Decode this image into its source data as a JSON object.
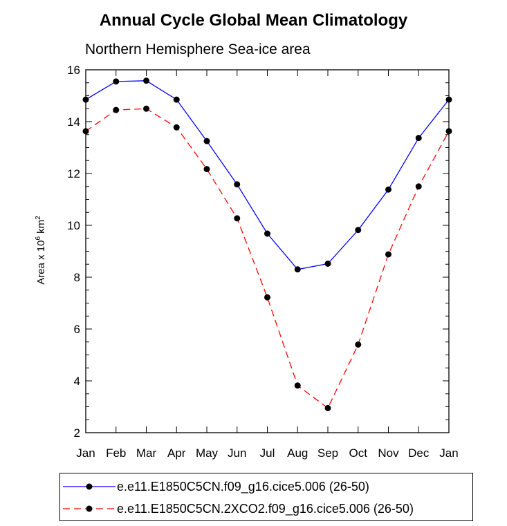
{
  "chart_data": {
    "type": "line",
    "title": "Annual Cycle Global Mean Climatology",
    "subtitle": "Northern Hemisphere Sea-ice area",
    "ylabel": "Area x 10",
    "ylabel_sup1": "6",
    "ylabel_unit": " km",
    "ylabel_sup2": "2",
    "xlabel": "",
    "categories": [
      "Jan",
      "Feb",
      "Mar",
      "Apr",
      "May",
      "Jun",
      "Jul",
      "Aug",
      "Sep",
      "Oct",
      "Nov",
      "Dec",
      "Jan"
    ],
    "ylim": [
      2,
      16
    ],
    "yticks": [
      2,
      4,
      6,
      8,
      10,
      12,
      14,
      16
    ],
    "series": [
      {
        "name": "e.e11.E1850C5CN.f09_g16.cice5.006 (26-50)",
        "color": "#0000ff",
        "dash": "solid",
        "values": [
          14.85,
          15.55,
          15.58,
          14.85,
          13.25,
          11.58,
          9.68,
          8.3,
          8.52,
          9.82,
          11.38,
          13.37,
          14.85
        ]
      },
      {
        "name": "e.e11.E1850C5CN.2XCO2.f09_g16.cice5.006 (26-50)",
        "color": "#ff0000",
        "dash": "dashed",
        "values": [
          13.63,
          14.45,
          14.5,
          13.78,
          12.17,
          10.27,
          7.22,
          3.82,
          2.95,
          5.4,
          8.88,
          11.5,
          13.63
        ]
      }
    ],
    "legend_position": "bottom"
  }
}
